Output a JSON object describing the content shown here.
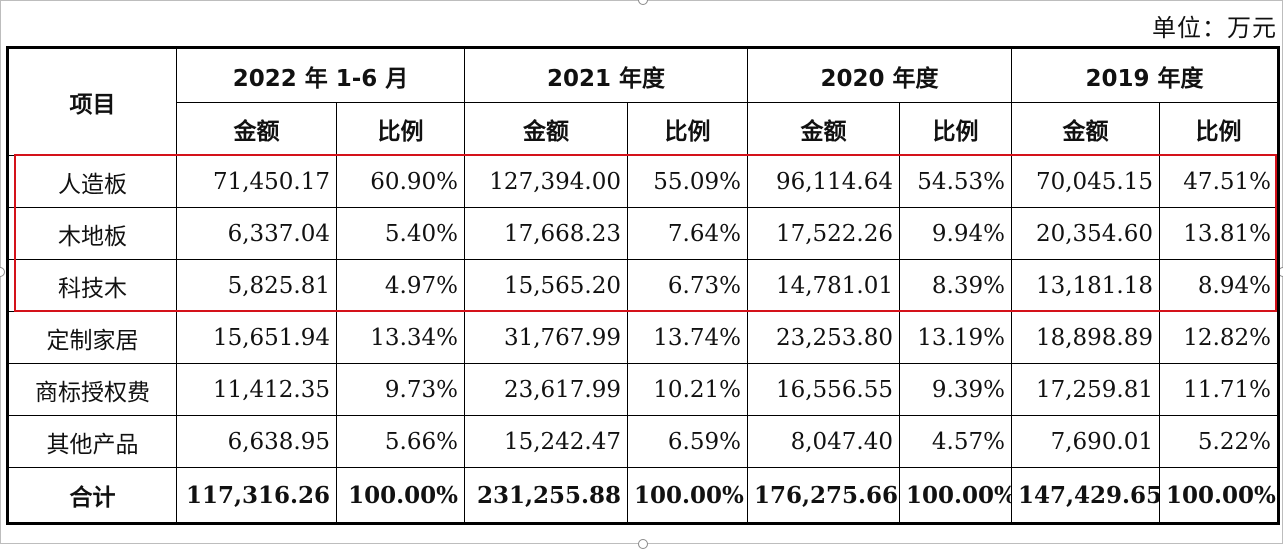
{
  "unit_label": "单位：万元",
  "header": {
    "item": "项目",
    "periods": [
      "2022 年 1-6 月",
      "2021 年度",
      "2020 年度",
      "2019 年度"
    ],
    "amount": "金额",
    "ratio": "比例"
  },
  "rows": [
    {
      "name": "人造板",
      "values": [
        "71,450.17",
        "60.90%",
        "127,394.00",
        "55.09%",
        "96,114.64",
        "54.53%",
        "70,045.15",
        "47.51%"
      ]
    },
    {
      "name": "木地板",
      "values": [
        "6,337.04",
        "5.40%",
        "17,668.23",
        "7.64%",
        "17,522.26",
        "9.94%",
        "20,354.60",
        "13.81%"
      ]
    },
    {
      "name": "科技木",
      "values": [
        "5,825.81",
        "4.97%",
        "15,565.20",
        "6.73%",
        "14,781.01",
        "8.39%",
        "13,181.18",
        "8.94%"
      ]
    },
    {
      "name": "定制家居",
      "values": [
        "15,651.94",
        "13.34%",
        "31,767.99",
        "13.74%",
        "23,253.80",
        "13.19%",
        "18,898.89",
        "12.82%"
      ]
    },
    {
      "name": "商标授权费",
      "values": [
        "11,412.35",
        "9.73%",
        "23,617.99",
        "10.21%",
        "16,556.55",
        "9.39%",
        "17,259.81",
        "11.71%"
      ]
    },
    {
      "name": "其他产品",
      "values": [
        "6,638.95",
        "5.66%",
        "15,242.47",
        "6.59%",
        "8,047.40",
        "4.57%",
        "7,690.01",
        "5.22%"
      ]
    }
  ],
  "total": {
    "name": "合计",
    "values": [
      "117,316.26",
      "100.00%",
      "231,255.88",
      "100.00%",
      "176,275.66",
      "100.00%",
      "147,429.65",
      "100.00%"
    ]
  },
  "colors": {
    "highlight_border": "#d4121a",
    "grid": "#000000"
  }
}
